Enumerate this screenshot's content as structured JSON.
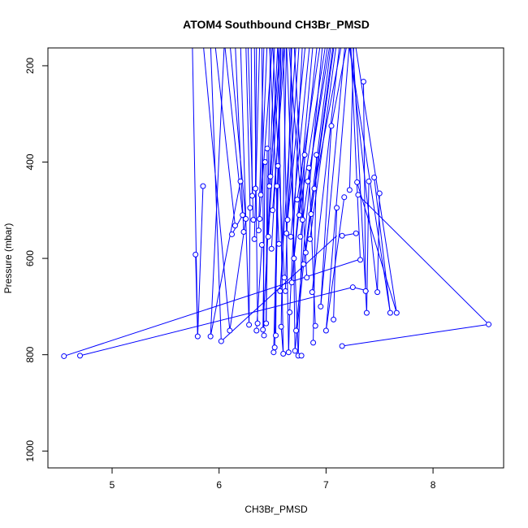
{
  "chart_data": {
    "type": "line",
    "title": "ATOM4 Southbound CH3Br_PMSD",
    "xlabel": "CH3Br_PMSD",
    "ylabel": "Pressure (mbar)",
    "xlim": [
      4.4,
      8.66
    ],
    "ylim": [
      1035,
      163
    ],
    "y_reversed": true,
    "xticks": [
      5,
      6,
      7,
      8
    ],
    "yticks": [
      200,
      400,
      600,
      800,
      1000
    ],
    "grid": false,
    "legend": "none",
    "marker": "open-circle",
    "color": "#0000ff",
    "points": [
      [
        4.55,
        803
      ],
      [
        4.7,
        802
      ],
      [
        7.25,
        660
      ],
      [
        5.8,
        762
      ],
      [
        5.78,
        592
      ],
      [
        5.92,
        762
      ],
      [
        6.02,
        772
      ],
      [
        6.1,
        750
      ],
      [
        5.85,
        450
      ],
      [
        6.12,
        550
      ],
      [
        6.15,
        532
      ],
      [
        6.2,
        440
      ],
      [
        6.22,
        510
      ],
      [
        6.23,
        545
      ],
      [
        6.25,
        518
      ],
      [
        6.28,
        738
      ],
      [
        6.29,
        495
      ],
      [
        6.31,
        470
      ],
      [
        6.32,
        520
      ],
      [
        6.33,
        560
      ],
      [
        6.34,
        455
      ],
      [
        6.35,
        750
      ],
      [
        6.36,
        735
      ],
      [
        6.37,
        542
      ],
      [
        6.38,
        518
      ],
      [
        6.39,
        468
      ],
      [
        6.4,
        572
      ],
      [
        6.41,
        748
      ],
      [
        6.42,
        760
      ],
      [
        6.43,
        400
      ],
      [
        6.44,
        735
      ],
      [
        6.45,
        372
      ],
      [
        6.46,
        555
      ],
      [
        6.47,
        450
      ],
      [
        6.48,
        430
      ],
      [
        6.49,
        580
      ],
      [
        6.5,
        500
      ],
      [
        6.51,
        795
      ],
      [
        6.52,
        785
      ],
      [
        6.53,
        760
      ],
      [
        6.54,
        450
      ],
      [
        6.55,
        408
      ],
      [
        6.56,
        570
      ],
      [
        6.57,
        668
      ],
      [
        6.58,
        742
      ],
      [
        6.6,
        798
      ],
      [
        6.61,
        640
      ],
      [
        6.62,
        668
      ],
      [
        6.63,
        548
      ],
      [
        6.64,
        520
      ],
      [
        6.65,
        795
      ],
      [
        6.66,
        712
      ],
      [
        6.67,
        555
      ],
      [
        6.68,
        650
      ],
      [
        6.7,
        600
      ],
      [
        6.71,
        792
      ],
      [
        6.72,
        750
      ],
      [
        6.73,
        478
      ],
      [
        6.74,
        802
      ],
      [
        6.75,
        510
      ],
      [
        6.76,
        555
      ],
      [
        6.77,
        802
      ],
      [
        6.78,
        520
      ],
      [
        6.79,
        612
      ],
      [
        6.8,
        385
      ],
      [
        6.81,
        588
      ],
      [
        6.82,
        640
      ],
      [
        6.83,
        440
      ],
      [
        6.84,
        412
      ],
      [
        6.85,
        560
      ],
      [
        6.86,
        508
      ],
      [
        6.87,
        670
      ],
      [
        6.88,
        775
      ],
      [
        6.89,
        455
      ],
      [
        6.9,
        740
      ],
      [
        6.91,
        385
      ],
      [
        6.95,
        700
      ],
      [
        7.0,
        750
      ],
      [
        7.05,
        325
      ],
      [
        7.07,
        727
      ],
      [
        7.1,
        495
      ],
      [
        7.15,
        553
      ],
      [
        7.17,
        473
      ],
      [
        7.22,
        458
      ],
      [
        7.28,
        548
      ],
      [
        7.29,
        442
      ],
      [
        7.3,
        468
      ],
      [
        7.32,
        603
      ],
      [
        7.35,
        233
      ],
      [
        7.37,
        668
      ],
      [
        7.38,
        713
      ],
      [
        7.4,
        440
      ],
      [
        7.45,
        432
      ],
      [
        7.48,
        670
      ],
      [
        7.5,
        465
      ],
      [
        7.6,
        713
      ],
      [
        7.66,
        713
      ],
      [
        7.15,
        782
      ],
      [
        8.52,
        737
      ]
    ],
    "segments": [
      [
        4.7,
        802,
        7.25,
        660
      ],
      [
        4.55,
        803,
        7.3,
        603
      ],
      [
        5.8,
        762,
        5.78,
        592
      ],
      [
        7.15,
        782,
        8.52,
        737
      ],
      [
        7.3,
        468,
        8.52,
        737
      ],
      [
        7.25,
        660,
        7.4,
        668
      ],
      [
        6.02,
        772,
        7.1,
        553
      ],
      [
        5.85,
        450,
        5.8,
        762
      ],
      [
        5.92,
        762,
        6.2,
        440
      ],
      [
        6.1,
        750,
        6.25,
        518
      ],
      [
        6.12,
        550,
        6.22,
        510
      ],
      [
        6.28,
        738,
        6.29,
        495
      ],
      [
        6.35,
        750,
        6.4,
        572
      ],
      [
        6.41,
        748,
        6.43,
        400
      ],
      [
        6.44,
        735,
        6.45,
        372
      ],
      [
        6.51,
        795,
        6.55,
        408
      ],
      [
        6.53,
        760,
        6.54,
        450
      ],
      [
        6.58,
        742,
        6.6,
        798
      ],
      [
        6.65,
        795,
        6.66,
        712
      ],
      [
        6.71,
        792,
        6.79,
        612
      ],
      [
        6.74,
        802,
        6.8,
        385
      ],
      [
        6.88,
        775,
        6.91,
        385
      ],
      [
        6.95,
        700,
        7.05,
        325
      ],
      [
        7.0,
        750,
        7.17,
        473
      ],
      [
        7.07,
        727,
        7.1,
        495
      ],
      [
        6.9,
        740,
        6.84,
        412
      ],
      [
        7.37,
        668,
        7.35,
        233
      ],
      [
        7.38,
        713,
        7.4,
        440
      ],
      [
        7.48,
        670,
        7.5,
        465
      ],
      [
        7.6,
        713,
        7.45,
        432
      ],
      [
        7.66,
        713,
        7.29,
        442
      ],
      [
        7.15,
        553,
        7.28,
        548
      ]
    ],
    "lines_to_top": [
      [
        5.8,
        762,
        5.75,
        150
      ],
      [
        5.92,
        762,
        6.05,
        150
      ],
      [
        6.02,
        772,
        5.92,
        150
      ],
      [
        6.1,
        750,
        5.85,
        150
      ],
      [
        6.15,
        532,
        5.96,
        150
      ],
      [
        6.22,
        510,
        6.05,
        150
      ],
      [
        6.23,
        545,
        6.15,
        150
      ],
      [
        6.25,
        518,
        6.1,
        150
      ],
      [
        6.28,
        738,
        6.2,
        150
      ],
      [
        6.29,
        495,
        6.25,
        150
      ],
      [
        6.31,
        470,
        6.3,
        150
      ],
      [
        6.32,
        520,
        6.27,
        150
      ],
      [
        6.33,
        560,
        6.38,
        150
      ],
      [
        6.34,
        455,
        6.35,
        150
      ],
      [
        6.36,
        735,
        6.33,
        150
      ],
      [
        6.37,
        542,
        6.42,
        150
      ],
      [
        6.38,
        518,
        6.5,
        150
      ],
      [
        6.39,
        468,
        6.45,
        150
      ],
      [
        6.41,
        748,
        6.55,
        150
      ],
      [
        6.42,
        760,
        6.4,
        150
      ],
      [
        6.44,
        735,
        6.48,
        150
      ],
      [
        6.46,
        555,
        6.58,
        150
      ],
      [
        6.47,
        450,
        6.52,
        150
      ],
      [
        6.48,
        430,
        6.57,
        150
      ],
      [
        6.49,
        580,
        6.6,
        150
      ],
      [
        6.5,
        500,
        6.62,
        150
      ],
      [
        6.52,
        785,
        6.58,
        150
      ],
      [
        6.56,
        570,
        6.47,
        150
      ],
      [
        6.57,
        668,
        6.72,
        150
      ],
      [
        6.58,
        742,
        6.63,
        150
      ],
      [
        6.61,
        640,
        6.5,
        150
      ],
      [
        6.62,
        668,
        6.68,
        150
      ],
      [
        6.63,
        548,
        6.75,
        150
      ],
      [
        6.64,
        520,
        6.81,
        150
      ],
      [
        6.66,
        712,
        6.78,
        150
      ],
      [
        6.67,
        555,
        6.85,
        150
      ],
      [
        6.68,
        650,
        6.88,
        150
      ],
      [
        6.7,
        600,
        6.92,
        150
      ],
      [
        6.72,
        750,
        6.97,
        150
      ],
      [
        6.73,
        478,
        6.95,
        150
      ],
      [
        6.75,
        510,
        7.0,
        150
      ],
      [
        6.76,
        555,
        7.02,
        150
      ],
      [
        6.78,
        520,
        6.65,
        150
      ],
      [
        6.79,
        612,
        7.05,
        150
      ],
      [
        6.81,
        588,
        7.07,
        150
      ],
      [
        6.82,
        640,
        6.7,
        150
      ],
      [
        6.83,
        440,
        7.04,
        150
      ],
      [
        6.85,
        560,
        7.1,
        150
      ],
      [
        6.86,
        508,
        7.08,
        150
      ],
      [
        6.87,
        670,
        7.13,
        150
      ],
      [
        6.89,
        455,
        7.15,
        150
      ],
      [
        6.95,
        700,
        7.18,
        150
      ],
      [
        7.0,
        750,
        7.22,
        150
      ],
      [
        7.05,
        325,
        7.2,
        150
      ],
      [
        7.22,
        458,
        7.26,
        150
      ],
      [
        7.32,
        603,
        7.23,
        150
      ],
      [
        7.38,
        713,
        7.25,
        150
      ],
      [
        7.48,
        670,
        7.22,
        150
      ],
      [
        7.6,
        713,
        7.21,
        150
      ],
      [
        7.66,
        713,
        7.27,
        150
      ],
      [
        6.6,
        798,
        6.55,
        150
      ],
      [
        6.65,
        795,
        6.6,
        150
      ],
      [
        6.71,
        792,
        6.67,
        150
      ],
      [
        6.74,
        802,
        6.63,
        150
      ]
    ]
  }
}
